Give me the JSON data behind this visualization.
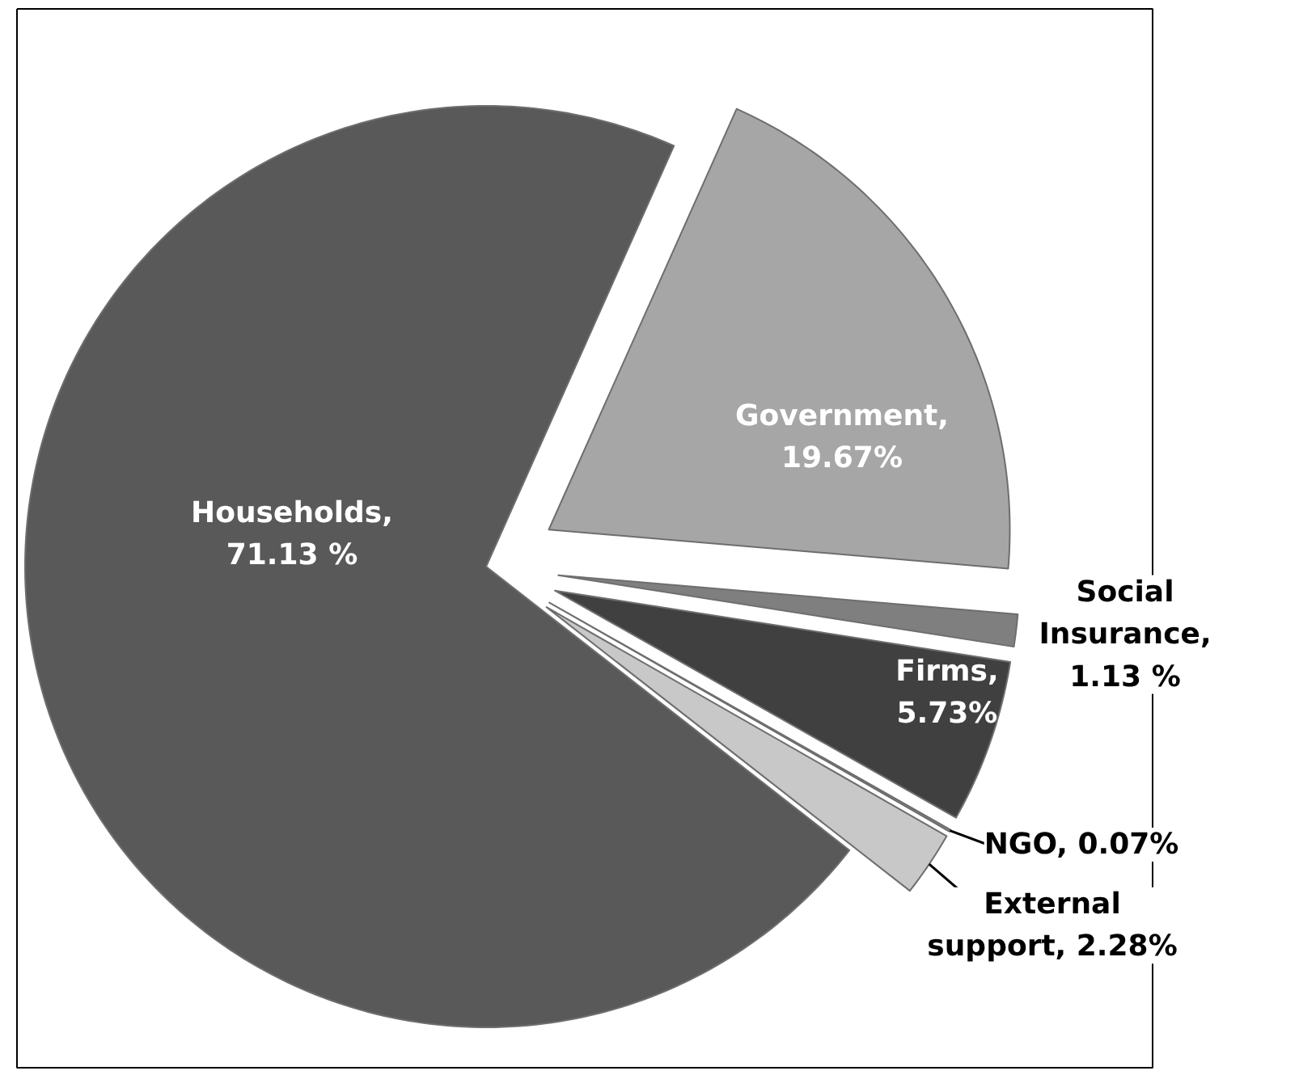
{
  "chart_data": {
    "type": "pie",
    "categories": [
      "Households",
      "Government",
      "Social Insurance",
      "Firms",
      "NGO",
      "External support"
    ],
    "values": [
      71.13,
      19.67,
      1.13,
      5.73,
      0.07,
      2.28
    ],
    "value_labels": [
      ", 71.13 %",
      ", 19.67%",
      ", 1.13 %",
      ", 5.73%",
      ", 0.07%",
      ", 2.28%"
    ],
    "colors": [
      "#595959",
      "#a6a6a6",
      "#7f7f7f",
      "#404040",
      "#8c8c8c",
      "#c8c8c8"
    ]
  }
}
